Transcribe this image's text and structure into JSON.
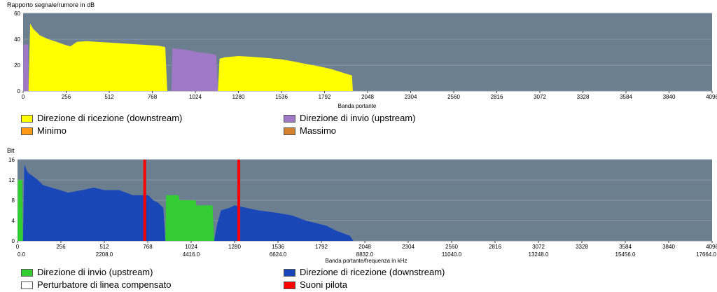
{
  "chart_data": [
    {
      "type": "area",
      "ylabel": "Rapporto segnale/rumore in dB",
      "xlabel": "Banda portante",
      "xlim": [
        0,
        4096
      ],
      "ylim": [
        0,
        60
      ],
      "y_ticks": [
        "0",
        "20",
        "40",
        "60"
      ],
      "x_ticks": [
        "0",
        "256",
        "512",
        "768",
        "1024",
        "1280",
        "1536",
        "1792",
        "2048",
        "2304",
        "2560",
        "2816",
        "3072",
        "3328",
        "3584",
        "3840",
        "4096"
      ],
      "grid": true,
      "series": [
        {
          "name": "Direzione di ricezione  (downstream)",
          "color": "#ffff00",
          "segments": [
            {
              "x": [
                32,
                42,
                60,
                100,
                150,
                200,
                240,
                280,
                320,
                380,
                440,
                500,
                560,
                620,
                680,
                740,
                800,
                845,
                857
              ],
              "y": [
                0,
                52,
                48,
                43,
                40,
                38,
                36,
                34.5,
                38,
                38.5,
                38,
                37.5,
                37,
                36.5,
                36,
                35.5,
                35,
                34,
                0
              ]
            },
            {
              "x": [
                1158,
                1168,
                1200,
                1280,
                1350,
                1450,
                1536,
                1600,
                1680,
                1760,
                1830,
                1880,
                1930,
                1955,
                1960
              ],
              "y": [
                0,
                25,
                26,
                27,
                26.5,
                25.5,
                24.5,
                23,
                21,
                19,
                17,
                15,
                13,
                12,
                0
              ]
            }
          ]
        },
        {
          "name": "Direzione di invio  (upstream)",
          "color": "#9f79c6",
          "segments": [
            {
              "x": [
                0,
                2,
                30,
                32
              ],
              "y": [
                0,
                36,
                36,
                0
              ]
            },
            {
              "x": [
                882,
                888,
                960,
                1040,
                1100,
                1148,
                1158
              ],
              "y": [
                0,
                33,
                32,
                30,
                29,
                28,
                0
              ]
            }
          ]
        }
      ],
      "legend": [
        {
          "label": "Direzione di ricezione  (downstream)",
          "color": "#ffff00"
        },
        {
          "label": "Direzione di invio  (upstream)",
          "color": "#9f79c6"
        },
        {
          "label": "Minimo",
          "color": "#ff9a16"
        },
        {
          "label": "Massimo",
          "color": "#d4812d"
        }
      ],
      "legend_position": "bottom"
    },
    {
      "type": "area",
      "ylabel": "Bit",
      "xlabel": "Banda portante/frequenza in kHz",
      "xlim": [
        0,
        4096
      ],
      "ylim": [
        0,
        16
      ],
      "y_ticks": [
        "0",
        "4",
        "8",
        "12",
        "16"
      ],
      "x_ticks": [
        "0",
        "256",
        "512",
        "768",
        "1024",
        "1280",
        "1536",
        "1792",
        "2048",
        "2304",
        "2560",
        "2816",
        "3072",
        "3328",
        "3584",
        "3840",
        "4096"
      ],
      "x_ticks_khz": [
        "0.0",
        "2208.0",
        "4416.0",
        "6624.0",
        "8832.0",
        "11040.0",
        "13248.0",
        "15456.0",
        "17664.0"
      ],
      "grid": true,
      "series": [
        {
          "name": "Direzione di invio  (upstream)",
          "color": "#33cc33",
          "segments": [
            {
              "x": [
                0,
                2,
                28,
                32
              ],
              "y": [
                0,
                12,
                12,
                0
              ]
            },
            {
              "x": [
                872,
                876,
                950,
                955,
                1050,
                1055,
                1150,
                1160
              ],
              "y": [
                0,
                9,
                9,
                8,
                8,
                7,
                7,
                0
              ]
            }
          ]
        },
        {
          "name": "Direzione di ricezione  (downstream)",
          "color": "#1947b8",
          "segments": [
            {
              "x": [
                32,
                40,
                60,
                80,
                100,
                120,
                150,
                200,
                250,
                300,
                380,
                450,
                512,
                600,
                680,
                740,
                770,
                800,
                830,
                860,
                872
              ],
              "y": [
                0,
                15,
                13.5,
                13,
                12.5,
                12,
                11,
                10.5,
                10,
                9.5,
                10,
                10.5,
                10,
                10,
                9,
                9,
                9,
                8,
                7.5,
                6.5,
                0
              ]
            },
            {
              "x": [
                1160,
                1175,
                1200,
                1250,
                1280,
                1350,
                1420,
                1536,
                1620,
                1700,
                1760,
                1820,
                1880,
                1920,
                1960,
                1980
              ],
              "y": [
                0,
                3,
                6,
                6.5,
                7,
                6.5,
                6,
                5.5,
                5,
                4,
                3.5,
                3,
                2,
                1.5,
                1,
                0
              ]
            }
          ]
        }
      ],
      "pilot_tones": [
        750,
        1305
      ],
      "legend": [
        {
          "label": "Direzione di invio  (upstream)",
          "color": "#33cc33"
        },
        {
          "label": "Direzione di ricezione  (downstream)",
          "color": "#1947b8"
        },
        {
          "label": "Perturbatore di linea compensato",
          "color": "#ffffff"
        },
        {
          "label": "Suoni pilota",
          "color": "#ff0000"
        }
      ],
      "legend_position": "bottom"
    }
  ],
  "colors": {
    "plot_background": "#6c7f91",
    "grid_line": "#8797a7",
    "pilot_tone": "#ff0000"
  }
}
